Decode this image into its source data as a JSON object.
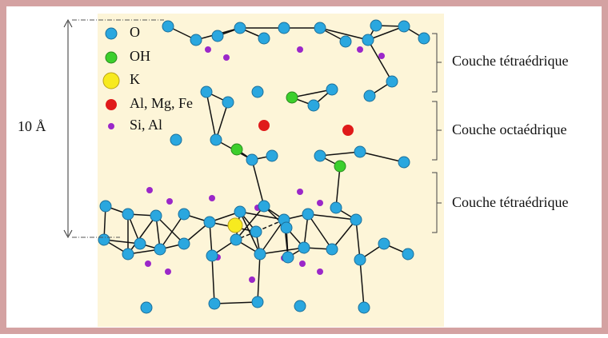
{
  "legend": {
    "items": [
      {
        "label": "O"
      },
      {
        "label": "OH"
      },
      {
        "label": "K"
      },
      {
        "label": "Al, Mg, Fe"
      },
      {
        "label": "Si, Al"
      }
    ]
  },
  "dimension": "10 Å",
  "layers": [
    {
      "label": "Couche tétraédrique"
    },
    {
      "label": "Couche octaédrique"
    },
    {
      "label": "Couche tétraédrique"
    }
  ]
}
